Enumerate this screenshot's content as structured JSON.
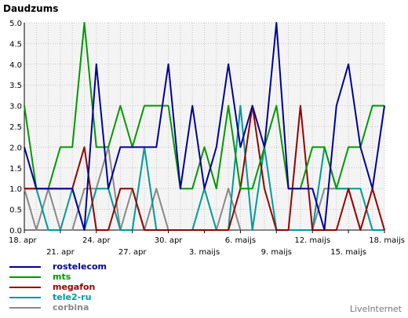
{
  "brand": "LiveInternet",
  "chart_data": {
    "type": "line",
    "title": "Daudzums",
    "ylim": [
      0,
      5
    ],
    "y_ticks": [
      "0.0",
      "0.5",
      "1.0",
      "1.5",
      "2.0",
      "2.5",
      "3.0",
      "3.5",
      "4.0",
      "4.5",
      "5.0"
    ],
    "x_ticks": [
      "18. apr",
      "21. apr",
      "24. apr",
      "27. apr",
      "30. apr",
      "3. maijs",
      "6. maijs",
      "9. maijs",
      "12. maijs",
      "15. maijs",
      "18. maijs"
    ],
    "grid": true,
    "legend_position": "bottom-left",
    "series": [
      {
        "name": "rostelecom",
        "color": "#000099",
        "values": [
          2,
          1,
          1,
          1,
          1,
          0,
          4,
          1,
          2,
          2,
          2,
          2,
          4,
          1,
          3,
          1,
          2,
          4,
          2,
          3,
          2,
          5,
          1,
          1,
          1,
          0,
          3,
          4,
          2,
          1,
          3
        ]
      },
      {
        "name": "mts",
        "color": "#009900",
        "values": [
          3,
          1,
          1,
          2,
          2,
          5,
          2,
          2,
          3,
          2,
          3,
          3,
          3,
          1,
          1,
          2,
          1,
          3,
          1,
          1,
          2,
          3,
          1,
          1,
          2,
          2,
          1,
          2,
          2,
          3,
          3
        ]
      },
      {
        "name": "megafon",
        "color": "#990000",
        "values": [
          1,
          1,
          1,
          1,
          1,
          2,
          0,
          0,
          1,
          1,
          0,
          0,
          0,
          0,
          0,
          0,
          0,
          0,
          1,
          3,
          1,
          0,
          0,
          3,
          0,
          0,
          0,
          1,
          0,
          1,
          0
        ]
      },
      {
        "name": "tele2-ru",
        "color": "#009999",
        "values": [
          1,
          1,
          0,
          0,
          1,
          0,
          1,
          1,
          0,
          0,
          2,
          0,
          0,
          0,
          0,
          1,
          0,
          0,
          3,
          0,
          2,
          0,
          0,
          0,
          0,
          2,
          1,
          1,
          1,
          0,
          0
        ]
      },
      {
        "name": "corbina",
        "color": "#888888",
        "values": [
          1,
          0,
          1,
          0,
          0,
          1,
          1,
          2,
          0,
          1,
          0,
          1,
          0,
          0,
          0,
          0,
          0,
          1,
          0,
          0,
          0,
          0,
          0,
          0,
          0,
          1,
          1,
          1,
          0,
          0,
          0
        ]
      }
    ]
  }
}
